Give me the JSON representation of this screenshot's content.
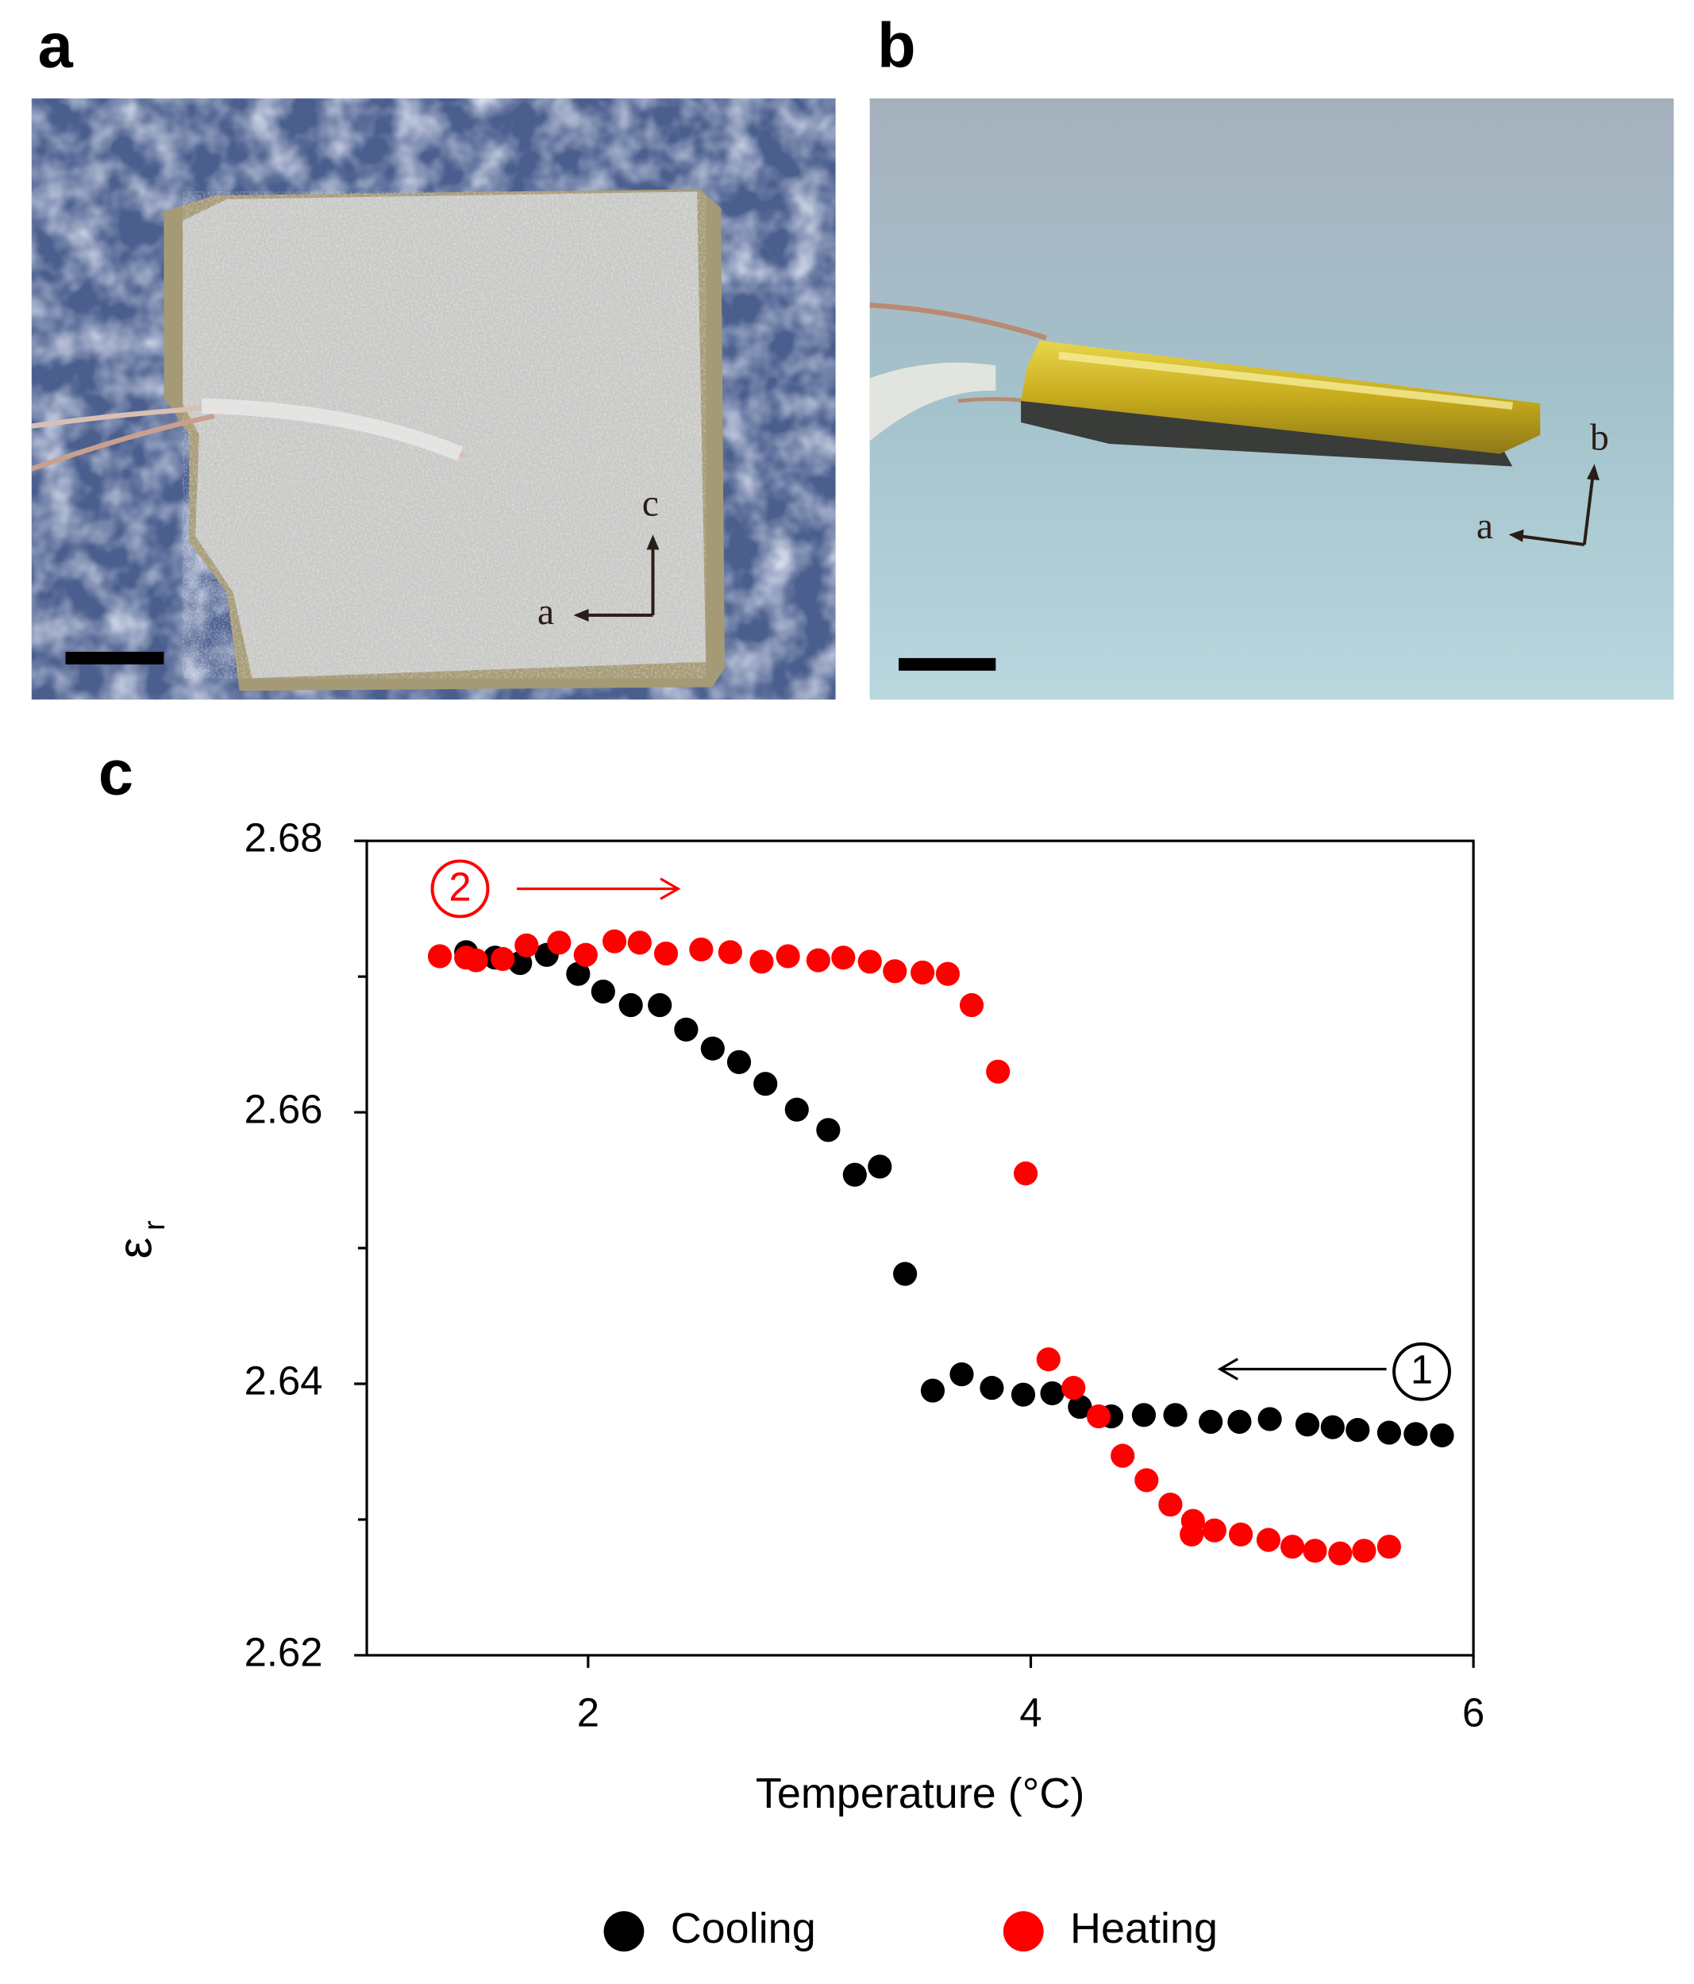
{
  "panels": [
    {
      "label": "a",
      "axis_labels": [
        "a",
        "c"
      ]
    },
    {
      "label": "b",
      "axis_labels": [
        "a",
        "b"
      ]
    },
    {
      "label": "c"
    }
  ],
  "chart_data": {
    "type": "scatter",
    "x_label": "Temperature (°C)",
    "y_label": "ε",
    "y_label_subscript": "r",
    "xlim": [
      1,
      6
    ],
    "xticks": [
      2,
      4,
      6
    ],
    "ylim": [
      2.62,
      2.68
    ],
    "yticks": [
      2.62,
      2.64,
      2.66,
      2.68
    ],
    "yminor_ticks": [
      2.63,
      2.65,
      2.67
    ],
    "grid": false,
    "legend": "bottom",
    "series": [
      {
        "name": "Cooling",
        "color": "#000000",
        "x": [
          1.449,
          1.58,
          1.693,
          1.813,
          1.955,
          2.068,
          2.193,
          2.324,
          2.443,
          2.563,
          2.682,
          2.801,
          2.943,
          3.085,
          3.205,
          3.318,
          3.432,
          3.557,
          3.688,
          3.824,
          3.966,
          4.097,
          4.222,
          4.364,
          4.511,
          4.653,
          4.813,
          4.943,
          5.08,
          5.25,
          5.364,
          5.477,
          5.619,
          5.739,
          5.858
        ],
        "values": [
          2.6718,
          2.6714,
          2.671,
          2.6716,
          2.6702,
          2.6689,
          2.6679,
          2.6679,
          2.6661,
          2.6647,
          2.6637,
          2.6621,
          2.6602,
          2.6587,
          2.6554,
          2.656,
          2.6481,
          2.6395,
          2.6407,
          2.6397,
          2.6392,
          2.6393,
          2.6383,
          2.6376,
          2.6377,
          2.6377,
          2.6372,
          2.6372,
          2.6374,
          2.637,
          2.6368,
          2.6366,
          2.6364,
          2.6363,
          2.6362
        ]
      },
      {
        "name": "Heating",
        "color": "#ff0000",
        "x": [
          1.33,
          1.449,
          1.494,
          1.614,
          1.722,
          1.869,
          1.989,
          2.119,
          2.233,
          2.352,
          2.511,
          2.642,
          2.784,
          2.903,
          3.04,
          3.153,
          3.273,
          3.386,
          3.511,
          3.625,
          3.733,
          3.852,
          3.977,
          4.08,
          4.193,
          4.307,
          4.415,
          4.523,
          4.631,
          4.733,
          4.727,
          4.83,
          4.949,
          5.074,
          5.182,
          5.284,
          5.398,
          5.506,
          5.619
        ],
        "values": [
          2.6715,
          2.6714,
          2.6712,
          2.6713,
          2.6723,
          2.6725,
          2.6716,
          2.6726,
          2.6725,
          2.6717,
          2.672,
          2.6718,
          2.6711,
          2.6715,
          2.6712,
          2.6714,
          2.6711,
          2.6704,
          2.6703,
          2.6702,
          2.6679,
          2.663,
          2.6555,
          2.6418,
          2.6397,
          2.6376,
          2.6347,
          2.6329,
          2.6311,
          2.6299,
          2.6289,
          2.6292,
          2.6289,
          2.6285,
          2.628,
          2.6277,
          2.6275,
          2.6277,
          2.628
        ]
      }
    ],
    "annotations": [
      {
        "text": "1",
        "color": "#000000"
      },
      {
        "text": "2",
        "color": "#ff0000"
      }
    ]
  }
}
